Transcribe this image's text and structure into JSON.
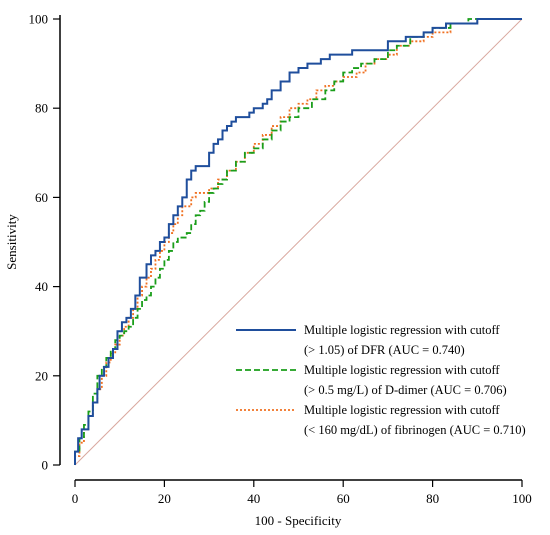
{
  "chart_data": {
    "type": "line",
    "xlabel": "100 - Specificity",
    "ylabel": "Sensitivity",
    "xlim": [
      0,
      100
    ],
    "ylim": [
      0,
      100
    ],
    "xticks": [
      0,
      20,
      40,
      60,
      80,
      100
    ],
    "yticks": [
      0,
      20,
      40,
      60,
      80,
      100
    ],
    "x_tick_labels": [
      "0",
      "20",
      "40",
      "60",
      "80",
      "100"
    ],
    "y_tick_labels": [
      "0",
      "20",
      "40",
      "60",
      "80",
      "100"
    ],
    "grid": false,
    "legend_position": "bottom-right",
    "reference_line": {
      "from": [
        0,
        0
      ],
      "to": [
        100,
        100
      ],
      "color": "#d9a89f"
    },
    "series": [
      {
        "legend_line1": "Multiple logistic regression with cutoff",
        "legend_line2": "(> 1.05) of DFR (AUC = 0.740)",
        "color": "#1f4e9c",
        "dash": "solid",
        "points": [
          [
            0,
            0
          ],
          [
            0,
            3
          ],
          [
            0.7,
            3
          ],
          [
            0.7,
            6
          ],
          [
            1.5,
            6
          ],
          [
            1.5,
            8
          ],
          [
            3,
            8
          ],
          [
            3,
            11
          ],
          [
            4,
            11
          ],
          [
            4,
            14
          ],
          [
            5,
            14
          ],
          [
            5,
            17
          ],
          [
            5.5,
            17
          ],
          [
            5.5,
            20
          ],
          [
            6.5,
            20
          ],
          [
            6.5,
            22
          ],
          [
            7.5,
            22
          ],
          [
            7.5,
            24
          ],
          [
            8.5,
            24
          ],
          [
            8.5,
            26
          ],
          [
            9.5,
            26
          ],
          [
            9.5,
            30
          ],
          [
            10.5,
            30
          ],
          [
            10.5,
            32
          ],
          [
            11.5,
            32
          ],
          [
            11.5,
            33
          ],
          [
            12.5,
            33
          ],
          [
            12.5,
            35
          ],
          [
            13.5,
            35
          ],
          [
            13.5,
            38
          ],
          [
            14.5,
            38
          ],
          [
            14.5,
            42
          ],
          [
            16,
            42
          ],
          [
            16,
            45
          ],
          [
            17,
            45
          ],
          [
            17,
            47
          ],
          [
            18,
            47
          ],
          [
            18,
            48
          ],
          [
            19,
            48
          ],
          [
            19,
            50
          ],
          [
            20,
            50
          ],
          [
            20,
            51
          ],
          [
            21,
            51
          ],
          [
            21,
            54
          ],
          [
            22,
            54
          ],
          [
            22,
            56
          ],
          [
            23,
            56
          ],
          [
            23,
            58
          ],
          [
            24,
            58
          ],
          [
            24,
            60
          ],
          [
            25,
            60
          ],
          [
            25,
            64
          ],
          [
            26,
            64
          ],
          [
            26,
            66
          ],
          [
            27,
            66
          ],
          [
            27,
            67
          ],
          [
            30,
            67
          ],
          [
            30,
            70
          ],
          [
            31,
            70
          ],
          [
            31,
            72
          ],
          [
            32,
            72
          ],
          [
            32,
            73
          ],
          [
            33,
            73
          ],
          [
            33,
            75
          ],
          [
            34,
            75
          ],
          [
            34,
            76
          ],
          [
            35,
            76
          ],
          [
            35,
            77
          ],
          [
            36,
            77
          ],
          [
            36,
            78
          ],
          [
            39,
            78
          ],
          [
            39,
            79
          ],
          [
            40,
            79
          ],
          [
            40,
            80
          ],
          [
            42,
            80
          ],
          [
            42,
            81
          ],
          [
            43,
            81
          ],
          [
            43,
            82
          ],
          [
            44,
            82
          ],
          [
            44,
            84
          ],
          [
            46,
            84
          ],
          [
            46,
            86
          ],
          [
            48,
            86
          ],
          [
            48,
            88
          ],
          [
            50,
            88
          ],
          [
            50,
            89
          ],
          [
            52,
            89
          ],
          [
            52,
            90
          ],
          [
            55,
            90
          ],
          [
            55,
            91
          ],
          [
            57,
            91
          ],
          [
            57,
            92
          ],
          [
            62,
            92
          ],
          [
            62,
            93
          ],
          [
            70,
            93
          ],
          [
            70,
            95
          ],
          [
            74,
            95
          ],
          [
            74,
            96
          ],
          [
            78,
            96
          ],
          [
            78,
            97
          ],
          [
            80,
            97
          ],
          [
            80,
            98
          ],
          [
            83,
            98
          ],
          [
            83,
            99
          ],
          [
            90,
            99
          ],
          [
            90,
            100
          ],
          [
            100,
            100
          ]
        ]
      },
      {
        "legend_line1": "Multiple logistic regression with cutoff",
        "legend_line2": "(> 0.5 mg/L) of D-dimer (AUC = 0.706)",
        "color": "#1a9e1a",
        "dash": "dashed",
        "points": [
          [
            0,
            0
          ],
          [
            0,
            3
          ],
          [
            1,
            3
          ],
          [
            1,
            6
          ],
          [
            2,
            6
          ],
          [
            2,
            9
          ],
          [
            3,
            9
          ],
          [
            3,
            12
          ],
          [
            4,
            12
          ],
          [
            4,
            16
          ],
          [
            5,
            16
          ],
          [
            5,
            20
          ],
          [
            6,
            20
          ],
          [
            6,
            22
          ],
          [
            7,
            22
          ],
          [
            7,
            24
          ],
          [
            8,
            24
          ],
          [
            8,
            26
          ],
          [
            9,
            26
          ],
          [
            9,
            28
          ],
          [
            10,
            28
          ],
          [
            10,
            29
          ],
          [
            11,
            29
          ],
          [
            11,
            30
          ],
          [
            12,
            30
          ],
          [
            12,
            31
          ],
          [
            13,
            31
          ],
          [
            13,
            33
          ],
          [
            14,
            33
          ],
          [
            14,
            35
          ],
          [
            15,
            35
          ],
          [
            15,
            37
          ],
          [
            16,
            37
          ],
          [
            16,
            38
          ],
          [
            17,
            38
          ],
          [
            17,
            40
          ],
          [
            18,
            40
          ],
          [
            18,
            42
          ],
          [
            19,
            42
          ],
          [
            19,
            44
          ],
          [
            20,
            44
          ],
          [
            20,
            46
          ],
          [
            21,
            46
          ],
          [
            21,
            48
          ],
          [
            22,
            48
          ],
          [
            22,
            50
          ],
          [
            23,
            50
          ],
          [
            23,
            51
          ],
          [
            25,
            51
          ],
          [
            25,
            52
          ],
          [
            26,
            52
          ],
          [
            26,
            54
          ],
          [
            27,
            54
          ],
          [
            27,
            56
          ],
          [
            28,
            56
          ],
          [
            28,
            57
          ],
          [
            29,
            57
          ],
          [
            29,
            59
          ],
          [
            30,
            59
          ],
          [
            30,
            61
          ],
          [
            31,
            61
          ],
          [
            31,
            62
          ],
          [
            32,
            62
          ],
          [
            32,
            63
          ],
          [
            33,
            63
          ],
          [
            33,
            64
          ],
          [
            34,
            64
          ],
          [
            34,
            66
          ],
          [
            36,
            66
          ],
          [
            36,
            68
          ],
          [
            38,
            68
          ],
          [
            38,
            70
          ],
          [
            40,
            70
          ],
          [
            40,
            71
          ],
          [
            42,
            71
          ],
          [
            42,
            73
          ],
          [
            44,
            73
          ],
          [
            44,
            75
          ],
          [
            46,
            75
          ],
          [
            46,
            77
          ],
          [
            48,
            77
          ],
          [
            48,
            78
          ],
          [
            50,
            78
          ],
          [
            50,
            80
          ],
          [
            53,
            80
          ],
          [
            53,
            82
          ],
          [
            56,
            82
          ],
          [
            56,
            84
          ],
          [
            58,
            84
          ],
          [
            58,
            86
          ],
          [
            60,
            86
          ],
          [
            60,
            88
          ],
          [
            62,
            88
          ],
          [
            62,
            89
          ],
          [
            64,
            89
          ],
          [
            64,
            90
          ],
          [
            67,
            90
          ],
          [
            67,
            91
          ],
          [
            70,
            91
          ],
          [
            70,
            93
          ],
          [
            72,
            93
          ],
          [
            72,
            94
          ],
          [
            75,
            94
          ],
          [
            75,
            96
          ],
          [
            78,
            96
          ],
          [
            78,
            97
          ],
          [
            80,
            97
          ],
          [
            80,
            98
          ],
          [
            84,
            98
          ],
          [
            84,
            99
          ],
          [
            88,
            99
          ],
          [
            88,
            100
          ],
          [
            100,
            100
          ]
        ]
      },
      {
        "legend_line1": "Multiple logistic regression with cutoff",
        "legend_line2": "(< 160 mg/dL) of fibrinogen (AUC = 0.710)",
        "color": "#f07020",
        "dash": "dotted",
        "points": [
          [
            0,
            0
          ],
          [
            0,
            2
          ],
          [
            1,
            2
          ],
          [
            1,
            5
          ],
          [
            2,
            5
          ],
          [
            2,
            8
          ],
          [
            3,
            8
          ],
          [
            3,
            11
          ],
          [
            4,
            11
          ],
          [
            4,
            14
          ],
          [
            5,
            14
          ],
          [
            5,
            17
          ],
          [
            6,
            17
          ],
          [
            6,
            20
          ],
          [
            7,
            20
          ],
          [
            7,
            23
          ],
          [
            8,
            23
          ],
          [
            8,
            25
          ],
          [
            9,
            25
          ],
          [
            9,
            27
          ],
          [
            10,
            27
          ],
          [
            10,
            29
          ],
          [
            11,
            29
          ],
          [
            11,
            31
          ],
          [
            12,
            31
          ],
          [
            12,
            33
          ],
          [
            13,
            33
          ],
          [
            13,
            35
          ],
          [
            14,
            35
          ],
          [
            14,
            38
          ],
          [
            15,
            38
          ],
          [
            15,
            40
          ],
          [
            16,
            40
          ],
          [
            16,
            42
          ],
          [
            17,
            42
          ],
          [
            17,
            44
          ],
          [
            18,
            44
          ],
          [
            18,
            46
          ],
          [
            19,
            46
          ],
          [
            19,
            48
          ],
          [
            20,
            48
          ],
          [
            20,
            50
          ],
          [
            21,
            50
          ],
          [
            21,
            52
          ],
          [
            22,
            52
          ],
          [
            22,
            54
          ],
          [
            23,
            54
          ],
          [
            23,
            56
          ],
          [
            24,
            56
          ],
          [
            24,
            58
          ],
          [
            26,
            58
          ],
          [
            26,
            60
          ],
          [
            27,
            60
          ],
          [
            27,
            61
          ],
          [
            30,
            61
          ],
          [
            30,
            62
          ],
          [
            32,
            62
          ],
          [
            32,
            64
          ],
          [
            34,
            64
          ],
          [
            34,
            66
          ],
          [
            36,
            66
          ],
          [
            36,
            68
          ],
          [
            38,
            68
          ],
          [
            38,
            70
          ],
          [
            40,
            70
          ],
          [
            40,
            72
          ],
          [
            42,
            72
          ],
          [
            42,
            74
          ],
          [
            44,
            74
          ],
          [
            44,
            76
          ],
          [
            46,
            76
          ],
          [
            46,
            78
          ],
          [
            48,
            78
          ],
          [
            48,
            80
          ],
          [
            50,
            80
          ],
          [
            50,
            81
          ],
          [
            52,
            81
          ],
          [
            52,
            82
          ],
          [
            54,
            82
          ],
          [
            54,
            84
          ],
          [
            56,
            84
          ],
          [
            56,
            85
          ],
          [
            58,
            85
          ],
          [
            58,
            86
          ],
          [
            60,
            86
          ],
          [
            60,
            87
          ],
          [
            63,
            87
          ],
          [
            63,
            88
          ],
          [
            65,
            88
          ],
          [
            65,
            90
          ],
          [
            67,
            90
          ],
          [
            67,
            91
          ],
          [
            70,
            91
          ],
          [
            70,
            92
          ],
          [
            72,
            92
          ],
          [
            72,
            94
          ],
          [
            75,
            94
          ],
          [
            75,
            95
          ],
          [
            78,
            95
          ],
          [
            78,
            96
          ],
          [
            80,
            96
          ],
          [
            80,
            97
          ],
          [
            84,
            97
          ],
          [
            84,
            99
          ],
          [
            90,
            99
          ],
          [
            90,
            100
          ],
          [
            100,
            100
          ]
        ]
      }
    ]
  }
}
